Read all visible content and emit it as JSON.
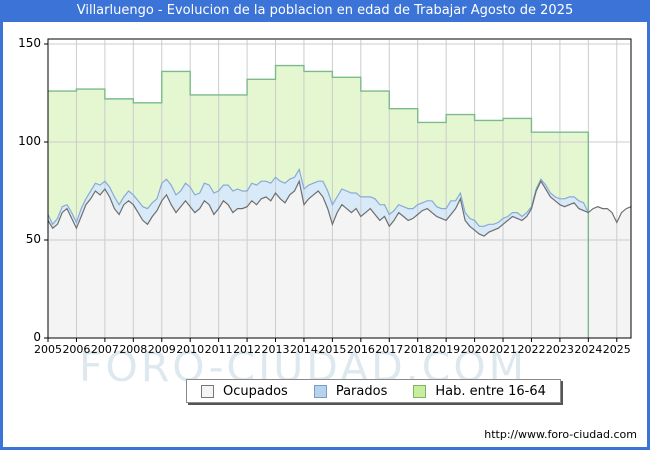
{
  "header": {
    "title": "Villarluengo - Evolucion de la poblacion en edad de Trabajar Agosto de 2025"
  },
  "watermark": "FORO-CIUDAD.COM",
  "footer": {
    "url": "http://www.foro-ciudad.com"
  },
  "colors": {
    "frame_blue": "#3b74d6",
    "grid": "#cccccc",
    "plot_border": "#000000",
    "hab_fill": "#e4f7d0",
    "hab_stroke": "#7cba8e",
    "parados_fill": "#d8e9f8",
    "parados_stroke": "#88aad8",
    "ocupados_fill": "#f4f4f4",
    "ocupados_stroke": "#6e6e6e",
    "watermark": "#c2d6e2"
  },
  "legend": {
    "items": [
      {
        "label": "Ocupados",
        "fill": "#f4f4f4",
        "border": "#777777"
      },
      {
        "label": "Parados",
        "fill": "#b5d2ee",
        "border": "#7a9cc6"
      },
      {
        "label": "Hab. entre 16-64",
        "fill": "#c6ee9c",
        "border": "#84b368"
      }
    ]
  },
  "chart_data": {
    "type": "area",
    "title": "Villarluengo - Evolucion de la poblacion en edad de Trabajar Agosto de 2025",
    "xlabel": "",
    "ylabel": "",
    "xlim": [
      2005,
      2025.5
    ],
    "ylim": [
      0,
      152.5
    ],
    "x_ticks": [
      2005,
      2006,
      2007,
      2008,
      2009,
      2010,
      2011,
      2012,
      2013,
      2014,
      2015,
      2016,
      2017,
      2018,
      2019,
      2020,
      2021,
      2022,
      2023,
      2024,
      2025
    ],
    "y_ticks": [
      0,
      50,
      100,
      150
    ],
    "grid": true,
    "legend_position": "bottom",
    "hab_16_64": {
      "name": "Hab. entre 16-64",
      "note": "annual step series, ends at 2024",
      "years": [
        2005,
        2006,
        2007,
        2008,
        2009,
        2010,
        2011,
        2012,
        2013,
        2014,
        2015,
        2016,
        2017,
        2018,
        2019,
        2020,
        2021,
        2022,
        2023
      ],
      "values": [
        126,
        127,
        122,
        120,
        136,
        124,
        124,
        132,
        139,
        136,
        133,
        126,
        117,
        110,
        114,
        111,
        112,
        105,
        105
      ],
      "step_end": 2024
    },
    "sampling": {
      "start_year": 2005,
      "step_years": 0.166667
    },
    "ocupados": {
      "name": "Ocupados",
      "values": [
        60,
        56,
        58,
        64,
        66,
        61,
        56,
        62,
        68,
        71,
        75,
        73,
        76,
        72,
        66,
        63,
        68,
        70,
        68,
        64,
        60,
        58,
        62,
        65,
        70,
        73,
        68,
        64,
        67,
        70,
        67,
        64,
        66,
        70,
        68,
        63,
        66,
        70,
        68,
        64,
        66,
        66,
        67,
        70,
        68,
        71,
        72,
        70,
        74,
        71,
        69,
        73,
        75,
        80,
        68,
        71,
        73,
        75,
        72,
        66,
        58,
        64,
        68,
        66,
        64,
        66,
        62,
        64,
        66,
        63,
        60,
        62,
        57,
        60,
        64,
        62,
        60,
        61,
        63,
        65,
        66,
        64,
        62,
        61,
        60,
        63,
        66,
        71,
        60,
        57,
        55,
        53,
        52,
        54,
        55,
        56,
        58,
        60,
        62,
        61,
        60,
        62,
        66,
        75,
        80,
        76,
        72,
        70,
        68,
        67,
        68,
        69,
        66,
        65,
        64,
        66,
        67,
        66,
        66,
        64,
        59,
        64,
        66,
        67
      ]
    },
    "parados": {
      "name": "Parados",
      "note": "stacked on top of Ocupados; zero after 2024",
      "values": [
        3,
        2,
        3,
        3,
        2,
        3,
        3,
        4,
        3,
        4,
        4,
        5,
        4,
        5,
        6,
        5,
        4,
        5,
        5,
        6,
        7,
        8,
        7,
        6,
        9,
        8,
        10,
        9,
        8,
        9,
        10,
        9,
        8,
        9,
        10,
        11,
        9,
        8,
        10,
        11,
        10,
        9,
        8,
        9,
        10,
        9,
        8,
        9,
        8,
        9,
        10,
        8,
        7,
        6,
        8,
        7,
        6,
        5,
        8,
        9,
        10,
        8,
        8,
        9,
        10,
        8,
        10,
        8,
        6,
        8,
        8,
        6,
        6,
        5,
        4,
        5,
        6,
        5,
        5,
        4,
        4,
        6,
        5,
        5,
        6,
        7,
        4,
        3,
        4,
        4,
        5,
        4,
        5,
        4,
        3,
        3,
        3,
        2,
        2,
        3,
        2,
        2,
        1,
        1,
        1,
        2,
        2,
        2,
        3,
        4,
        4,
        3,
        4,
        4,
        0
      ]
    }
  }
}
